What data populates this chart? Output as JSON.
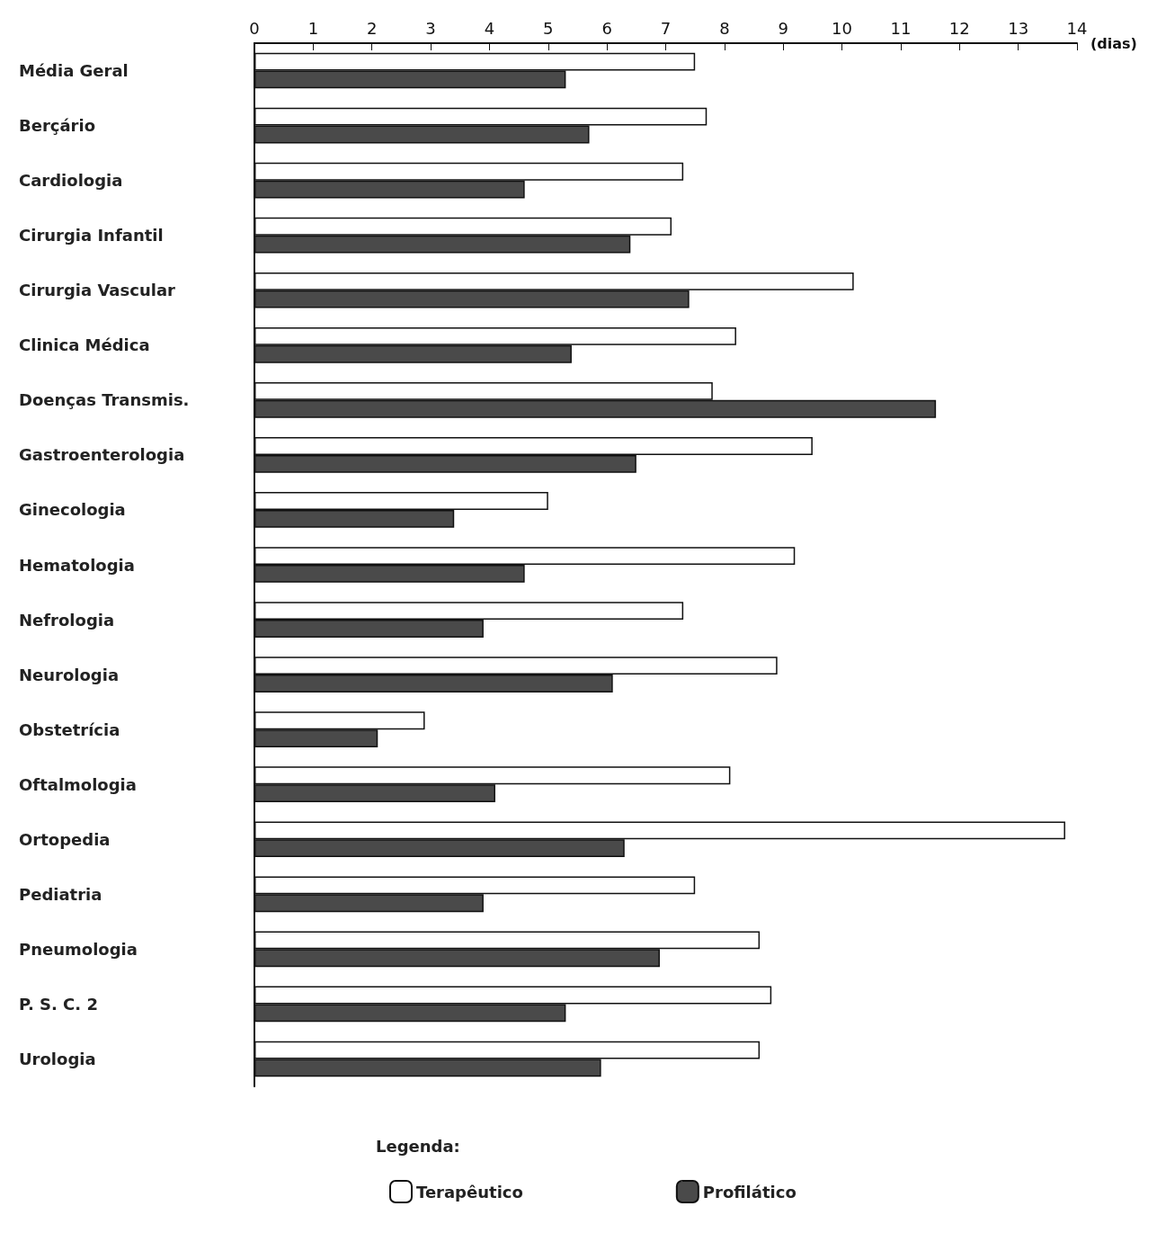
{
  "chart_data": {
    "type": "bar",
    "orientation": "horizontal",
    "xlabel": "(dias)",
    "legend_title": "Legenda:",
    "categories": [
      "Média Geral",
      "Berçário",
      "Cardiologia",
      "Cirurgia Infantil",
      "Cirurgia Vascular",
      "Clinica Médica",
      "Doenças Transmis.",
      "Gastroenterologia",
      "Ginecologia",
      "Hematologia",
      "Nefrologia",
      "Neurologia",
      "Obstetrícia",
      "Oftalmologia",
      "Ortopedia",
      "Pediatria",
      "Pneumologia",
      "P. S. C. 2",
      "Urologia"
    ],
    "series": [
      {
        "name": "Terapêutico",
        "color": "#ffffff",
        "values": [
          7.5,
          7.7,
          7.3,
          7.1,
          10.2,
          8.2,
          7.8,
          9.5,
          5.0,
          9.2,
          7.3,
          8.9,
          2.9,
          8.1,
          13.8,
          7.5,
          8.6,
          8.8,
          8.6
        ]
      },
      {
        "name": "Profilático",
        "color": "#4a4a4a",
        "values": [
          5.3,
          5.7,
          4.6,
          6.4,
          7.4,
          5.4,
          11.6,
          6.5,
          3.4,
          4.6,
          3.9,
          6.1,
          2.1,
          4.1,
          6.3,
          3.9,
          6.9,
          5.3,
          5.9
        ]
      }
    ],
    "xlim": [
      0,
      14
    ],
    "xticks": [
      0,
      1,
      2,
      3,
      4,
      5,
      6,
      7,
      8,
      9,
      10,
      11,
      12,
      13,
      14
    ],
    "grid": false,
    "legend": "bottom"
  }
}
